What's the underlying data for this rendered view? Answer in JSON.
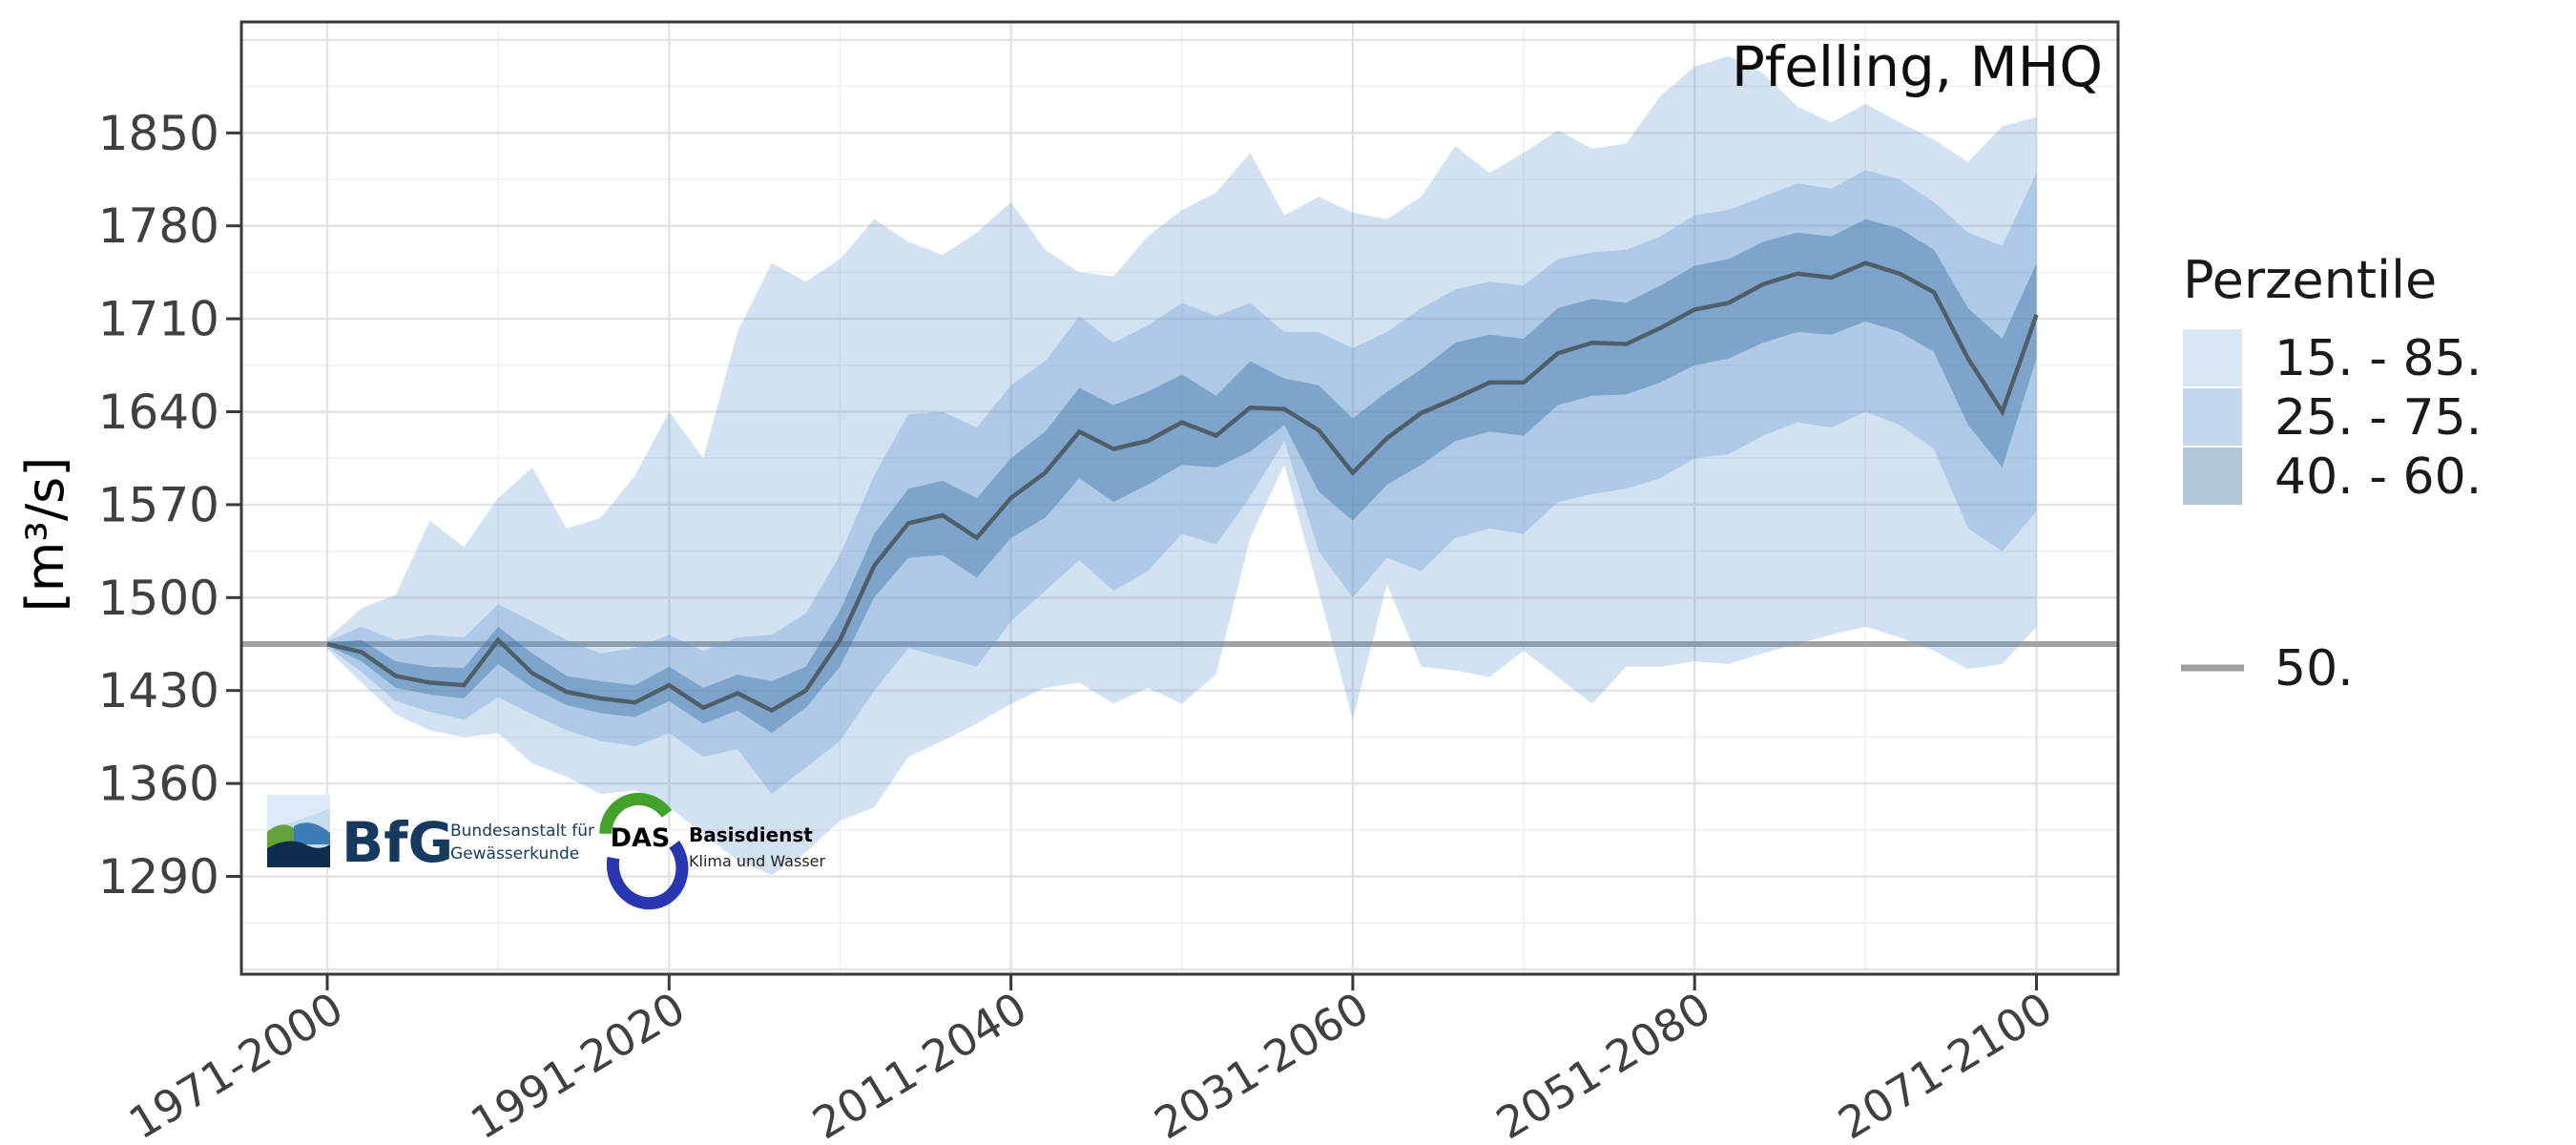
{
  "chart": {
    "title": "Pfelling, MHQ",
    "y_axis_label": "[m³/s]"
  },
  "chart_data": {
    "type": "area",
    "title": "Pfelling, MHQ",
    "subtitle": "",
    "xlabel": "",
    "ylabel": "[m³/s]",
    "grid": "major and minor, light gray on white",
    "legend_position": "right",
    "x_tick_labels": [
      "1971-2000",
      "1991-2020",
      "2011-2040",
      "2031-2060",
      "2051-2080",
      "2071-2100"
    ],
    "x_tick_years": [
      1971,
      1991,
      2011,
      2031,
      2051,
      2071
    ],
    "y_ticks": [
      1290,
      1360,
      1430,
      1500,
      1570,
      1640,
      1710,
      1780,
      1850
    ],
    "ylim": [
      1216,
      1933
    ],
    "x_years": [
      1971,
      1973,
      1975,
      1977,
      1979,
      1981,
      1983,
      1985,
      1987,
      1989,
      1991,
      1993,
      1995,
      1997,
      1999,
      2001,
      2003,
      2005,
      2007,
      2009,
      2011,
      2013,
      2015,
      2017,
      2019,
      2021,
      2023,
      2025,
      2027,
      2029,
      2031,
      2033,
      2035,
      2037,
      2039,
      2041,
      2043,
      2045,
      2047,
      2049,
      2051,
      2053,
      2055,
      2057,
      2059,
      2061,
      2063,
      2065,
      2067,
      2069,
      2071
    ],
    "series": [
      {
        "name": "15. - 85.",
        "role": "band",
        "fill": "rgba(96,152,208,0.28)",
        "lo": [
          1461,
          1436,
          1412,
          1400,
          1395,
          1398,
          1375,
          1365,
          1352,
          1355,
          1342,
          1322,
          1302,
          1291,
          1308,
          1332,
          1342,
          1380,
          1392,
          1405,
          1420,
          1432,
          1436,
          1420,
          1432,
          1420,
          1442,
          1545,
          1600,
          1505,
          1408,
          1510,
          1448,
          1445,
          1440,
          1460,
          1440,
          1420,
          1448,
          1448,
          1452,
          1450,
          1458,
          1465,
          1472,
          1478,
          1470,
          1460,
          1446,
          1450,
          1478
        ],
        "hi": [
          1469,
          1492,
          1502,
          1558,
          1538,
          1575,
          1598,
          1552,
          1560,
          1592,
          1640,
          1605,
          1700,
          1752,
          1738,
          1755,
          1785,
          1768,
          1758,
          1775,
          1798,
          1762,
          1745,
          1742,
          1772,
          1792,
          1805,
          1835,
          1788,
          1802,
          1790,
          1785,
          1802,
          1840,
          1820,
          1835,
          1852,
          1838,
          1842,
          1878,
          1900,
          1908,
          1895,
          1870,
          1858,
          1872,
          1858,
          1845,
          1828,
          1855,
          1862
        ]
      },
      {
        "name": "25. - 75.",
        "role": "band",
        "fill": "rgba(96,152,208,0.32)",
        "lo": [
          1463,
          1444,
          1422,
          1414,
          1408,
          1425,
          1412,
          1400,
          1392,
          1388,
          1398,
          1380,
          1386,
          1352,
          1372,
          1392,
          1430,
          1462,
          1455,
          1448,
          1482,
          1505,
          1528,
          1505,
          1520,
          1548,
          1540,
          1576,
          1618,
          1535,
          1500,
          1530,
          1520,
          1545,
          1552,
          1548,
          1572,
          1578,
          1582,
          1590,
          1605,
          1608,
          1622,
          1632,
          1628,
          1640,
          1630,
          1612,
          1552,
          1535,
          1565
        ],
        "hi": [
          1467,
          1478,
          1468,
          1472,
          1470,
          1495,
          1482,
          1468,
          1458,
          1462,
          1472,
          1460,
          1470,
          1472,
          1488,
          1532,
          1592,
          1638,
          1640,
          1628,
          1660,
          1678,
          1712,
          1692,
          1705,
          1722,
          1712,
          1722,
          1700,
          1700,
          1688,
          1700,
          1718,
          1732,
          1738,
          1735,
          1755,
          1760,
          1762,
          1772,
          1788,
          1792,
          1802,
          1812,
          1808,
          1822,
          1815,
          1798,
          1775,
          1765,
          1820
        ]
      },
      {
        "name": "40. - 60.",
        "role": "band",
        "fill": "rgba(62,112,168,0.42)",
        "lo": [
          1464,
          1452,
          1432,
          1427,
          1424,
          1450,
          1432,
          1419,
          1413,
          1410,
          1422,
          1405,
          1415,
          1398,
          1417,
          1448,
          1500,
          1530,
          1532,
          1515,
          1545,
          1560,
          1590,
          1572,
          1585,
          1600,
          1598,
          1610,
          1630,
          1580,
          1558,
          1585,
          1600,
          1618,
          1625,
          1622,
          1645,
          1652,
          1653,
          1662,
          1675,
          1680,
          1692,
          1700,
          1698,
          1708,
          1700,
          1685,
          1630,
          1598,
          1680
        ],
        "hi": [
          1466,
          1468,
          1452,
          1448,
          1447,
          1478,
          1458,
          1441,
          1437,
          1434,
          1448,
          1432,
          1442,
          1437,
          1448,
          1490,
          1548,
          1582,
          1588,
          1575,
          1605,
          1625,
          1658,
          1645,
          1655,
          1668,
          1652,
          1678,
          1665,
          1660,
          1635,
          1655,
          1672,
          1692,
          1698,
          1695,
          1718,
          1725,
          1722,
          1735,
          1750,
          1755,
          1768,
          1775,
          1772,
          1785,
          1778,
          1762,
          1718,
          1695,
          1752
        ]
      },
      {
        "name": "50.",
        "role": "line",
        "color": "#4e5f6a",
        "values": [
          1465,
          1459,
          1441,
          1436,
          1434,
          1468,
          1443,
          1429,
          1424,
          1421,
          1434,
          1417,
          1428,
          1415,
          1430,
          1468,
          1524,
          1556,
          1562,
          1545,
          1575,
          1594,
          1625,
          1612,
          1618,
          1632,
          1622,
          1643,
          1642,
          1626,
          1594,
          1620,
          1639,
          1650,
          1662,
          1662,
          1684,
          1692,
          1691,
          1703,
          1717,
          1722,
          1736,
          1744,
          1741,
          1752,
          1744,
          1730,
          1680,
          1640,
          1713
        ]
      }
    ],
    "reference_line": {
      "label": "50.",
      "value": 1465,
      "color": "#a3a3a3"
    }
  },
  "legend": {
    "title": "Perzentile",
    "bands": [
      {
        "label": "15. - 85.",
        "color": "#d9e7f5"
      },
      {
        "label": "25. - 75.",
        "color": "#c3d8ec"
      },
      {
        "label": "40. - 60.",
        "color": "#b1c6d9"
      }
    ],
    "line_item": {
      "label": "50.",
      "color": "#9e9e9e"
    }
  },
  "logos": {
    "bfg": {
      "acronym": "BfG",
      "line1": "Bundesanstalt für",
      "line2": "Gewässerkunde"
    },
    "das": {
      "acronym": "DAS",
      "line1": "Basisdienst",
      "line2": "Klima und Wasser"
    }
  }
}
